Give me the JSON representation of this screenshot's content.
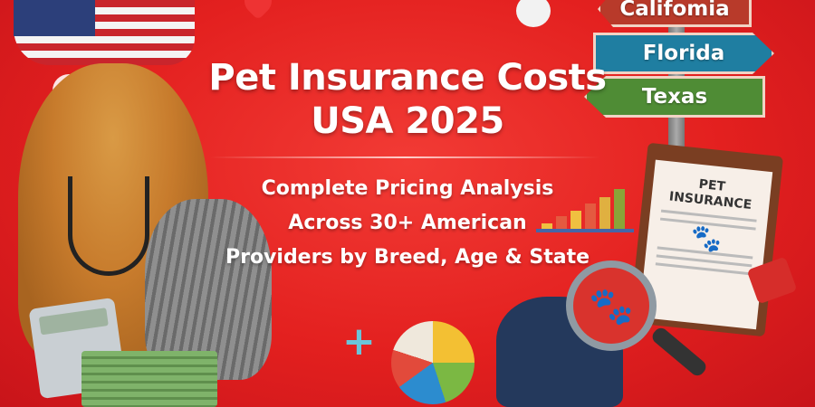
{
  "title": {
    "line1": "Pet Insurance Costs",
    "line2": "USA 2025"
  },
  "subtitle": {
    "line1": "Complete Pricing Analysis",
    "line2": "Across 30+ American",
    "line3": "Providers by Breed, Age & State"
  },
  "signs": [
    {
      "label": "Califomia",
      "color": "#b83a2a"
    },
    {
      "label": "Florida",
      "color": "#1f7ea1"
    },
    {
      "label": "Texas",
      "color": "#4f8c35"
    }
  ],
  "clipboard": {
    "line1": "PET",
    "line2": "INSURANCE"
  },
  "colors": {
    "background": "#e3201f",
    "text": "#ffffff"
  }
}
